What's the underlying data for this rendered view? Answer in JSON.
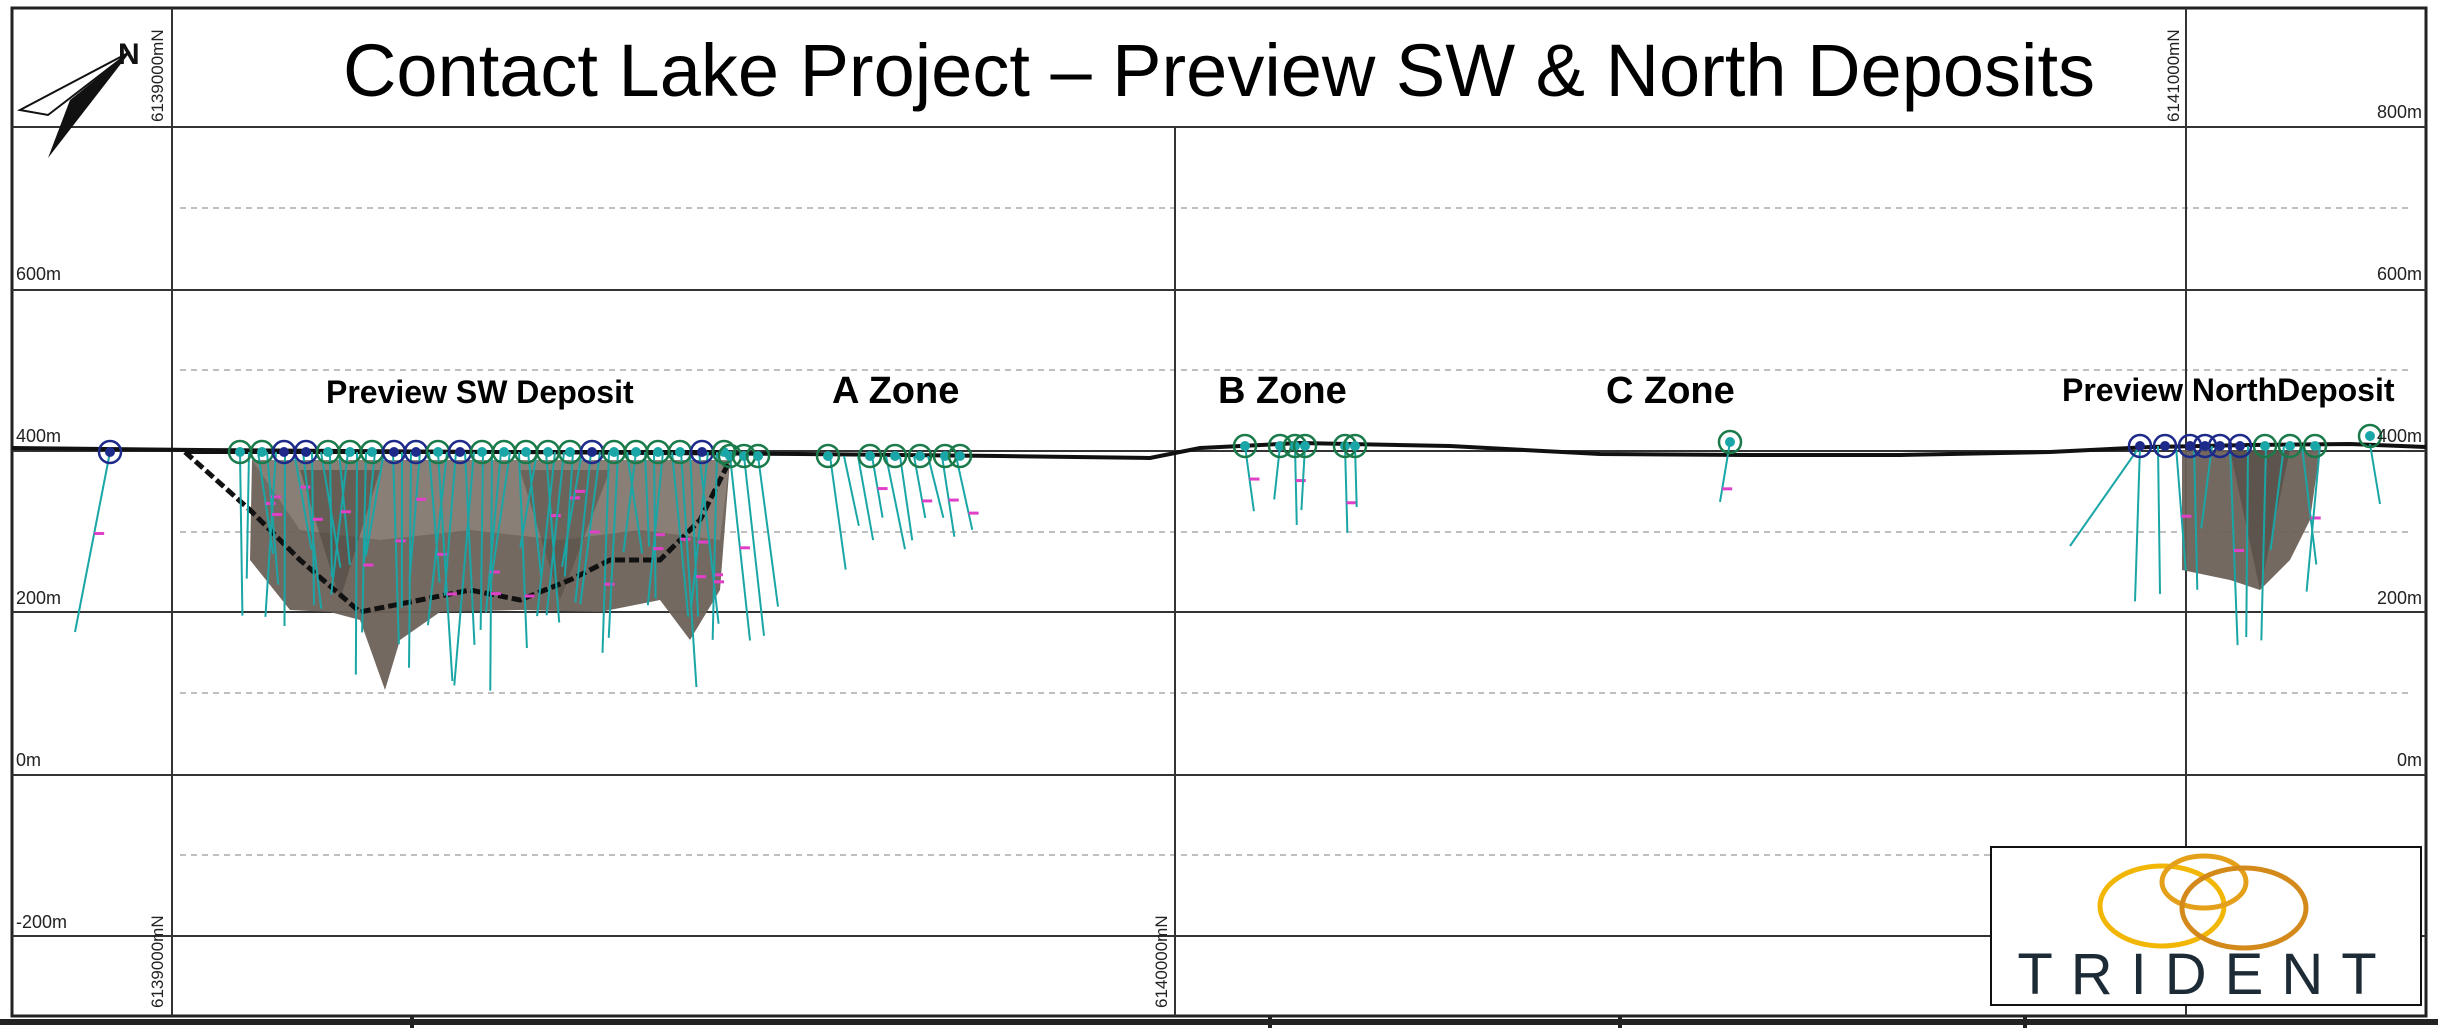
{
  "title": "Contact Lake Project – Preview SW & North Deposits",
  "zones": [
    {
      "key": "sw",
      "label": "Preview SW Deposit"
    },
    {
      "key": "a",
      "label": "A Zone"
    },
    {
      "key": "b",
      "label": "B Zone"
    },
    {
      "key": "c",
      "label": "C Zone"
    },
    {
      "key": "north",
      "label": "Preview NorthDeposit"
    }
  ],
  "elevation_labels": {
    "left": [
      "600m",
      "400m",
      "200m",
      "0m",
      "-200m"
    ],
    "right": [
      "800m",
      "600m",
      "400m",
      "200m",
      "0m"
    ]
  },
  "northing_labels": {
    "top_left": "6139000mN",
    "top_right": "6141000mN",
    "bottom_left": "6139000mN",
    "bottom_mid": "6140000mN"
  },
  "north_arrow": {
    "label": "N"
  },
  "logo": {
    "text": "TRIDENT",
    "colors": [
      "#f2b705",
      "#e3a018",
      "#d48a1a"
    ]
  },
  "colors": {
    "drill_trace": "#1aa6a6",
    "collar": "#1d2a8a",
    "intercept": "#e040c8",
    "pit": "#111111",
    "body_fill": "#6b6158"
  }
}
